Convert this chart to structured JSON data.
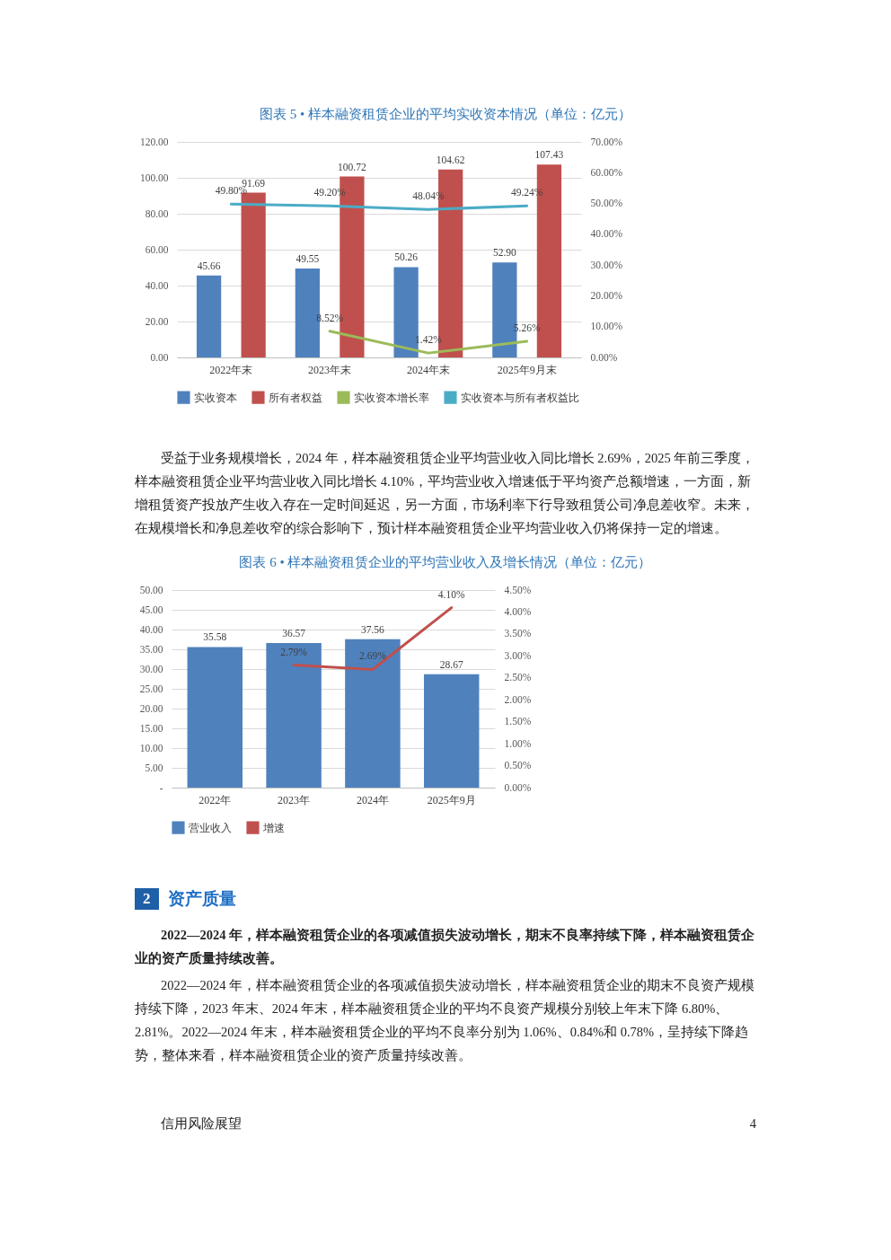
{
  "chart_data": [
    {
      "type": "bar",
      "title": "图表 5 • 样本融资租赁企业的平均实收资本情况（单位：亿元）",
      "categories": [
        "2022年末",
        "2023年末",
        "2024年末",
        "2025年9月末"
      ],
      "series": [
        {
          "name": "实收资本",
          "color": "#4f81bd",
          "values": [
            45.66,
            49.55,
            50.26,
            52.9
          ],
          "value_labels": [
            "45.66",
            "49.55",
            "50.26",
            "52.90"
          ]
        },
        {
          "name": "所有者权益",
          "color": "#c0504d",
          "values": [
            91.69,
            100.72,
            104.62,
            107.43
          ],
          "value_labels": [
            "91.69",
            "100.72",
            "104.62",
            "107.43"
          ]
        },
        {
          "name": "实收资本增长率",
          "type": "line",
          "axis": "y2",
          "color": "#9bbb59",
          "values": [
            null,
            8.52,
            1.42,
            5.26
          ],
          "value_labels": [
            null,
            "8.52%",
            "1.42%",
            "5.26%"
          ]
        },
        {
          "name": "实收资本与所有者权益比",
          "type": "line",
          "axis": "y2",
          "color": "#4bacc6",
          "values": [
            49.8,
            49.2,
            48.04,
            49.24
          ],
          "value_labels": [
            "49.80%",
            "49.20%",
            "48.04%",
            "49.24%"
          ]
        }
      ],
      "ylim": [
        0,
        120
      ],
      "yticks": [
        {
          "value": 0,
          "label": "0.00"
        },
        {
          "value": 20,
          "label": "20.00"
        },
        {
          "value": 40,
          "label": "40.00"
        },
        {
          "value": 60,
          "label": "60.00"
        },
        {
          "value": 80,
          "label": "80.00"
        },
        {
          "value": 100,
          "label": "100.00"
        },
        {
          "value": 120,
          "label": "120.00"
        }
      ],
      "y2lim": [
        0,
        70
      ],
      "y2ticks": [
        {
          "value": 0,
          "label": "0.00%"
        },
        {
          "value": 10,
          "label": "10.00%"
        },
        {
          "value": 20,
          "label": "20.00%"
        },
        {
          "value": 30,
          "label": "30.00%"
        },
        {
          "value": 40,
          "label": "40.00%"
        },
        {
          "value": 50,
          "label": "50.00%"
        },
        {
          "value": 60,
          "label": "60.00%"
        },
        {
          "value": 70,
          "label": "70.00%"
        }
      ],
      "grid": "y",
      "legend": "bottom"
    },
    {
      "type": "other",
      "annotations": [
        "受益于业务规模增长，2024 年，样本融资租赁企业平均营业收入同比增长 2.69%，2025 年前三季度，样本融资租赁企业平均营业收入同比增长 4.10%，平均营业收入增速低于平均资产总额增速，一方面，新增租赁资产投放产生收入存在一定时间延迟，另一方面，市场利率下行导致租赁公司净息差收窄。未来，在规模增长和净息差收窄的综合影响下，预计样本融资租赁企业平均营业收入仍将保持一定的增速。"
      ]
    },
    {
      "type": "bar",
      "title": "图表 6 • 样本融资租赁企业的平均营业收入及增长情况（单位：亿元）",
      "categories": [
        "2022年",
        "2023年",
        "2024年",
        "2025年9月"
      ],
      "series": [
        {
          "name": "营业收入",
          "color": "#4f81bd",
          "values": [
            35.58,
            36.57,
            37.56,
            28.67
          ],
          "value_labels": [
            "35.58",
            "36.57",
            "37.56",
            "28.67"
          ]
        },
        {
          "name": "增速",
          "type": "line",
          "axis": "y2",
          "color": "#c0504d",
          "values": [
            null,
            2.79,
            2.69,
            4.1
          ],
          "value_labels": [
            null,
            "2.79%",
            "2.69%",
            "4.10%"
          ]
        }
      ],
      "ylim": [
        0,
        50
      ],
      "yticks": [
        {
          "value": 0,
          "label": "-"
        },
        {
          "value": 5,
          "label": "5.00"
        },
        {
          "value": 10,
          "label": "10.00"
        },
        {
          "value": 15,
          "label": "15.00"
        },
        {
          "value": 20,
          "label": "20.00"
        },
        {
          "value": 25,
          "label": "25.00"
        },
        {
          "value": 30,
          "label": "30.00"
        },
        {
          "value": 35,
          "label": "35.00"
        },
        {
          "value": 40,
          "label": "40.00"
        },
        {
          "value": 45,
          "label": "45.00"
        },
        {
          "value": 50,
          "label": "50.00"
        }
      ],
      "y2lim": [
        0,
        4.5
      ],
      "y2ticks": [
        {
          "value": 0,
          "label": "0.00%"
        },
        {
          "value": 0.5,
          "label": "0.50%"
        },
        {
          "value": 1,
          "label": "1.00%"
        },
        {
          "value": 1.5,
          "label": "1.50%"
        },
        {
          "value": 2,
          "label": "2.00%"
        },
        {
          "value": 2.5,
          "label": "2.50%"
        },
        {
          "value": 3,
          "label": "3.00%"
        },
        {
          "value": 3.5,
          "label": "3.50%"
        },
        {
          "value": 4,
          "label": "4.00%"
        },
        {
          "value": 4.5,
          "label": "4.50%"
        }
      ],
      "grid": "y",
      "legend": "bottom"
    },
    {
      "type": "other",
      "categories": [
        "2"
      ],
      "title": "资产质量",
      "subtitle": "2022—2024 年，样本融资租赁企业的各项减值损失波动增长，期末不良率持续下降，样本融资租赁企业的资产质量持续改善。",
      "annotations": [
        "2022—2024 年，样本融资租赁企业的各项减值损失波动增长，样本融资租赁企业的期末不良资产规模持续下降，2023 年末、2024 年末，样本融资租赁企业的平均不良资产规模分别较上年末下降 6.80%、2.81%。2022—2024 年末，样本融资租赁企业的平均不良率分别为 1.06%、0.84%和 0.78%，呈持续下降趋势，整体来看，样本融资租赁企业的资产质量持续改善。"
      ]
    },
    {
      "type": "other",
      "annotations": [
        "信用风险展望",
        "4"
      ]
    }
  ]
}
